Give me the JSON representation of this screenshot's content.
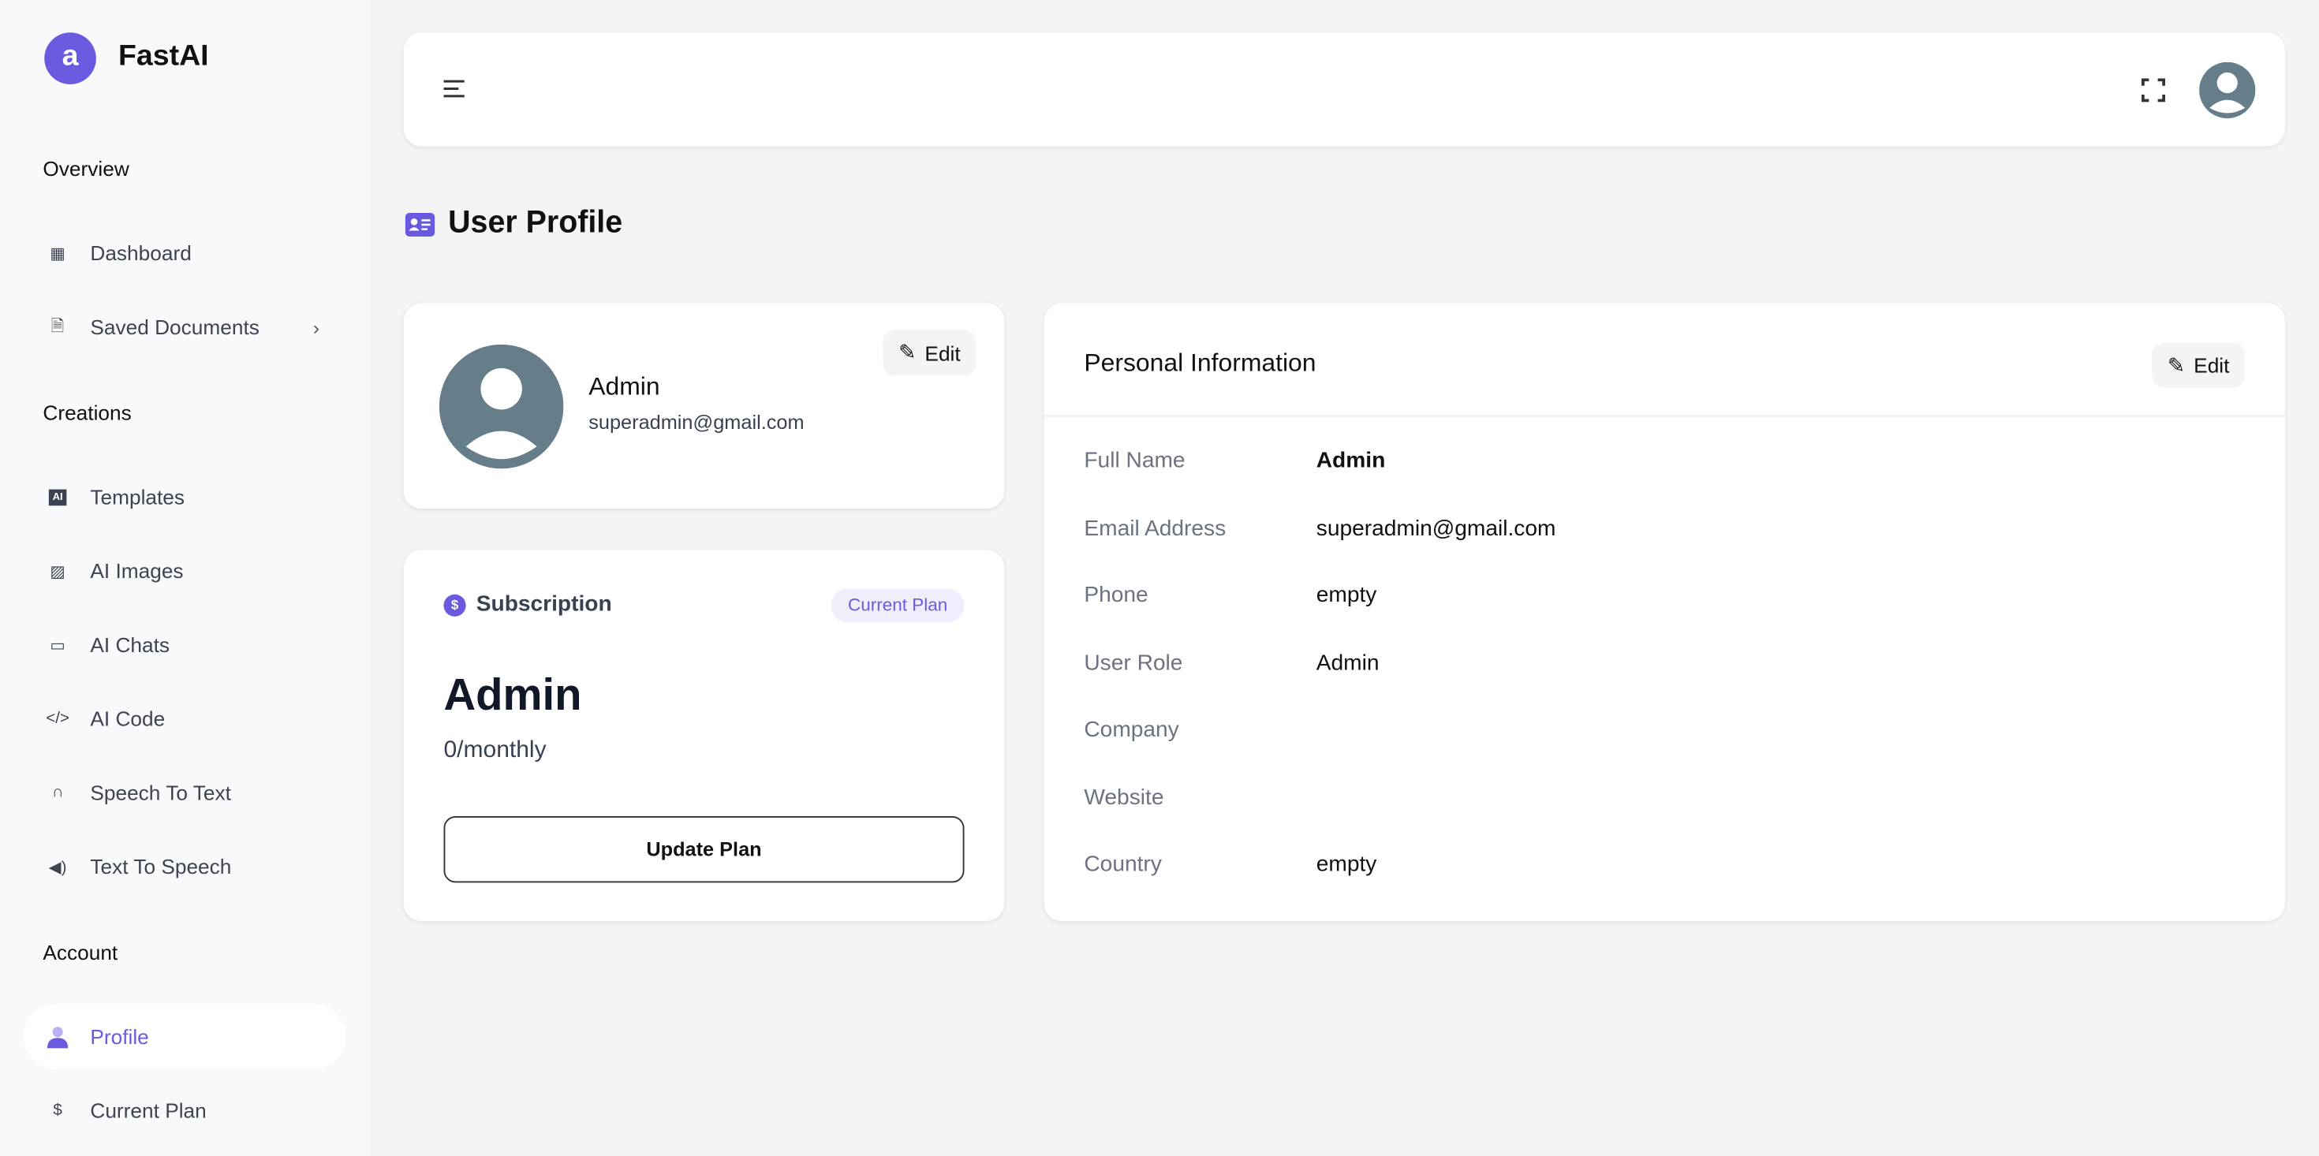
{
  "brand": {
    "name": "FastAI",
    "logo_letter": "a",
    "accent": "#6a5ae0"
  },
  "sidebar": {
    "sections": [
      {
        "title": "Overview"
      },
      {
        "title": "Creations"
      },
      {
        "title": "Account"
      }
    ],
    "items": [
      {
        "label": "Dashboard",
        "icon": "dashboard-icon"
      },
      {
        "label": "Saved Documents",
        "icon": "document-check-icon"
      },
      {
        "label": "Templates",
        "icon": "ai-chip-icon"
      },
      {
        "label": "AI Images",
        "icon": "image-icon"
      },
      {
        "label": "AI Chats",
        "icon": "chat-icon"
      },
      {
        "label": "AI Code",
        "icon": "code-icon"
      },
      {
        "label": "Speech To Text",
        "icon": "headphones-icon"
      },
      {
        "label": "Text To Speech",
        "icon": "speaker-icon"
      },
      {
        "label": "Profile",
        "icon": "user-icon",
        "active": true
      },
      {
        "label": "Current Plan",
        "icon": "money-bag-icon"
      }
    ]
  },
  "page": {
    "title": "User Profile"
  },
  "profile_card": {
    "name": "Admin",
    "email": "superadmin@gmail.com",
    "edit_label": "Edit"
  },
  "subscription": {
    "title": "Subscription",
    "badge": "Current Plan",
    "plan": "Admin",
    "price": "0/monthly",
    "button": "Update Plan"
  },
  "personal_info": {
    "title": "Personal Information",
    "edit_label": "Edit",
    "rows": [
      {
        "label": "Full Name",
        "value": "Admin"
      },
      {
        "label": "Email Address",
        "value": "superadmin@gmail.com"
      },
      {
        "label": "Phone",
        "value": "empty"
      },
      {
        "label": "User Role",
        "value": "Admin"
      },
      {
        "label": "Company",
        "value": ""
      },
      {
        "label": "Website",
        "value": ""
      },
      {
        "label": "Country",
        "value": "empty"
      }
    ]
  }
}
